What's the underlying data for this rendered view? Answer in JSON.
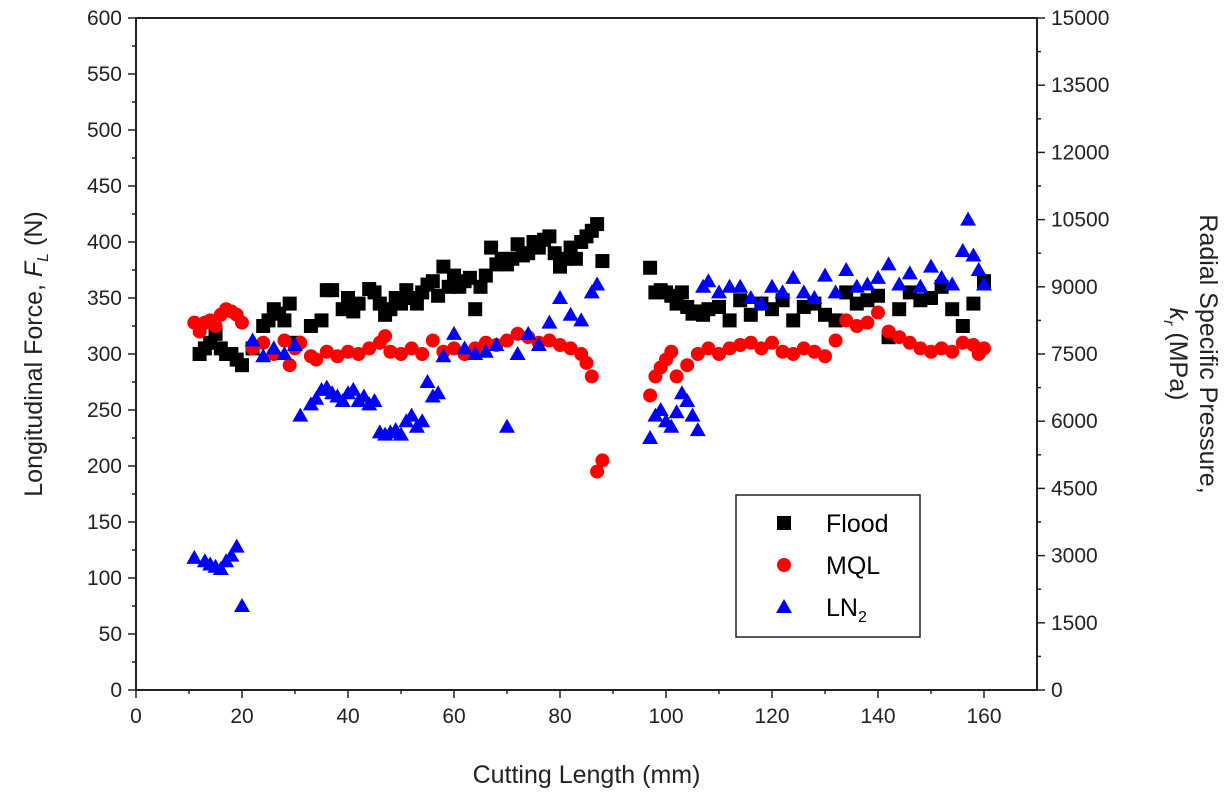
{
  "chart_data": {
    "type": "scatter",
    "title": "",
    "xlabel": "Cutting Length (mm)",
    "ylabel_left": {
      "text": "Longitudinal Force, ",
      "symbol": "F",
      "subscript": "L",
      "unit": " (N)"
    },
    "ylabel_right": {
      "line1": "Radial Specific Pressure,",
      "symbol": "k",
      "subscript": "r",
      "unit": " (MPa)"
    },
    "xlim": [
      0,
      170
    ],
    "ylim_left": [
      0,
      600
    ],
    "ylim_right": [
      0,
      15000
    ],
    "x_ticks": [
      0,
      20,
      40,
      60,
      80,
      100,
      120,
      140,
      160
    ],
    "y_ticks_left": [
      0,
      50,
      100,
      150,
      200,
      250,
      300,
      350,
      400,
      450,
      500,
      550,
      600
    ],
    "y_ticks_right": [
      0,
      1500,
      3000,
      4500,
      6000,
      7500,
      9000,
      10500,
      12000,
      13500,
      15000
    ],
    "grid": false,
    "legend_position": "bottom-right",
    "series": [
      {
        "name": "Flood",
        "marker": "square",
        "color": "#000000",
        "points": [
          [
            12,
            300
          ],
          [
            13,
            305
          ],
          [
            14,
            310
          ],
          [
            15,
            318
          ],
          [
            16,
            305
          ],
          [
            17,
            300
          ],
          [
            18,
            300
          ],
          [
            19,
            295
          ],
          [
            20,
            290
          ],
          [
            22,
            305
          ],
          [
            24,
            325
          ],
          [
            25,
            330
          ],
          [
            26,
            340
          ],
          [
            27,
            336
          ],
          [
            28,
            330
          ],
          [
            29,
            345
          ],
          [
            30,
            310
          ],
          [
            33,
            325
          ],
          [
            35,
            330
          ],
          [
            36,
            357
          ],
          [
            37,
            357
          ],
          [
            39,
            340
          ],
          [
            40,
            350
          ],
          [
            41,
            338
          ],
          [
            42,
            345
          ],
          [
            44,
            358
          ],
          [
            45,
            355
          ],
          [
            46,
            345
          ],
          [
            47,
            335
          ],
          [
            48,
            340
          ],
          [
            49,
            350
          ],
          [
            50,
            345
          ],
          [
            51,
            357
          ],
          [
            52,
            350
          ],
          [
            53,
            345
          ],
          [
            54,
            355
          ],
          [
            55,
            362
          ],
          [
            56,
            365
          ],
          [
            57,
            352
          ],
          [
            58,
            378
          ],
          [
            59,
            360
          ],
          [
            60,
            370
          ],
          [
            61,
            360
          ],
          [
            62,
            365
          ],
          [
            63,
            368
          ],
          [
            64,
            340
          ],
          [
            65,
            360
          ],
          [
            66,
            370
          ],
          [
            67,
            395
          ],
          [
            68,
            380
          ],
          [
            69,
            385
          ],
          [
            70,
            380
          ],
          [
            71,
            385
          ],
          [
            72,
            398
          ],
          [
            73,
            388
          ],
          [
            74,
            390
          ],
          [
            75,
            400
          ],
          [
            76,
            395
          ],
          [
            77,
            402
          ],
          [
            78,
            405
          ],
          [
            79,
            390
          ],
          [
            80,
            378
          ],
          [
            81,
            385
          ],
          [
            82,
            395
          ],
          [
            83,
            385
          ],
          [
            84,
            400
          ],
          [
            85,
            405
          ],
          [
            86,
            410
          ],
          [
            87,
            416
          ],
          [
            88,
            383
          ],
          [
            97,
            377
          ],
          [
            98,
            355
          ],
          [
            99,
            357
          ],
          [
            100,
            355
          ],
          [
            101,
            352
          ],
          [
            102,
            345
          ],
          [
            103,
            355
          ],
          [
            104,
            342
          ],
          [
            105,
            336
          ],
          [
            106,
            338
          ],
          [
            107,
            335
          ],
          [
            108,
            340
          ],
          [
            110,
            342
          ],
          [
            112,
            330
          ],
          [
            114,
            348
          ],
          [
            116,
            335
          ],
          [
            118,
            345
          ],
          [
            120,
            340
          ],
          [
            122,
            348
          ],
          [
            124,
            330
          ],
          [
            126,
            342
          ],
          [
            128,
            345
          ],
          [
            130,
            335
          ],
          [
            132,
            330
          ],
          [
            134,
            355
          ],
          [
            136,
            345
          ],
          [
            138,
            348
          ],
          [
            140,
            352
          ],
          [
            142,
            315
          ],
          [
            144,
            340
          ],
          [
            146,
            355
          ],
          [
            148,
            348
          ],
          [
            150,
            350
          ],
          [
            152,
            360
          ],
          [
            154,
            340
          ],
          [
            156,
            325
          ],
          [
            158,
            345
          ],
          [
            160,
            365
          ]
        ]
      },
      {
        "name": "MQL",
        "marker": "circle",
        "color": "#ff0000",
        "points": [
          [
            11,
            328
          ],
          [
            12,
            320
          ],
          [
            13,
            328
          ],
          [
            14,
            330
          ],
          [
            15,
            325
          ],
          [
            16,
            335
          ],
          [
            17,
            340
          ],
          [
            18,
            338
          ],
          [
            19,
            335
          ],
          [
            20,
            328
          ],
          [
            22,
            305
          ],
          [
            24,
            310
          ],
          [
            26,
            300
          ],
          [
            28,
            312
          ],
          [
            29,
            290
          ],
          [
            30,
            305
          ],
          [
            31,
            310
          ],
          [
            33,
            298
          ],
          [
            34,
            295
          ],
          [
            36,
            302
          ],
          [
            38,
            298
          ],
          [
            40,
            302
          ],
          [
            42,
            300
          ],
          [
            44,
            305
          ],
          [
            46,
            310
          ],
          [
            47,
            316
          ],
          [
            48,
            302
          ],
          [
            50,
            300
          ],
          [
            52,
            305
          ],
          [
            54,
            300
          ],
          [
            56,
            312
          ],
          [
            58,
            302
          ],
          [
            60,
            305
          ],
          [
            62,
            300
          ],
          [
            64,
            305
          ],
          [
            66,
            310
          ],
          [
            68,
            308
          ],
          [
            70,
            312
          ],
          [
            72,
            318
          ],
          [
            74,
            315
          ],
          [
            76,
            310
          ],
          [
            78,
            312
          ],
          [
            80,
            308
          ],
          [
            82,
            305
          ],
          [
            84,
            300
          ],
          [
            85,
            292
          ],
          [
            86,
            280
          ],
          [
            87,
            195
          ],
          [
            88,
            205
          ],
          [
            97,
            263
          ],
          [
            98,
            280
          ],
          [
            99,
            288
          ],
          [
            100,
            295
          ],
          [
            101,
            302
          ],
          [
            102,
            280
          ],
          [
            104,
            290
          ],
          [
            106,
            300
          ],
          [
            108,
            305
          ],
          [
            110,
            300
          ],
          [
            112,
            305
          ],
          [
            114,
            308
          ],
          [
            116,
            310
          ],
          [
            118,
            305
          ],
          [
            120,
            310
          ],
          [
            122,
            302
          ],
          [
            124,
            300
          ],
          [
            126,
            305
          ],
          [
            128,
            302
          ],
          [
            130,
            298
          ],
          [
            132,
            312
          ],
          [
            134,
            330
          ],
          [
            136,
            325
          ],
          [
            138,
            328
          ],
          [
            140,
            337
          ],
          [
            142,
            320
          ],
          [
            144,
            315
          ],
          [
            146,
            310
          ],
          [
            148,
            305
          ],
          [
            150,
            302
          ],
          [
            152,
            305
          ],
          [
            154,
            302
          ],
          [
            156,
            310
          ],
          [
            158,
            308
          ],
          [
            159,
            300
          ],
          [
            160,
            305
          ]
        ]
      },
      {
        "name": "LN2",
        "legend_base": "LN",
        "legend_sub": "2",
        "marker": "triangle",
        "color": "#0000ff",
        "points": [
          [
            11,
            118
          ],
          [
            13,
            115
          ],
          [
            14,
            112
          ],
          [
            15,
            110
          ],
          [
            16,
            108
          ],
          [
            17,
            115
          ],
          [
            18,
            120
          ],
          [
            19,
            128
          ],
          [
            20,
            75
          ],
          [
            22,
            312
          ],
          [
            24,
            298
          ],
          [
            26,
            305
          ],
          [
            28,
            300
          ],
          [
            30,
            308
          ],
          [
            31,
            245
          ],
          [
            33,
            255
          ],
          [
            34,
            260
          ],
          [
            35,
            268
          ],
          [
            36,
            270
          ],
          [
            37,
            265
          ],
          [
            38,
            262
          ],
          [
            39,
            258
          ],
          [
            40,
            265
          ],
          [
            41,
            268
          ],
          [
            42,
            258
          ],
          [
            43,
            262
          ],
          [
            44,
            255
          ],
          [
            45,
            258
          ],
          [
            46,
            230
          ],
          [
            47,
            228
          ],
          [
            48,
            230
          ],
          [
            49,
            232
          ],
          [
            50,
            228
          ],
          [
            51,
            240
          ],
          [
            52,
            245
          ],
          [
            53,
            235
          ],
          [
            54,
            240
          ],
          [
            55,
            275
          ],
          [
            56,
            262
          ],
          [
            57,
            265
          ],
          [
            58,
            298
          ],
          [
            60,
            318
          ],
          [
            62,
            305
          ],
          [
            64,
            300
          ],
          [
            66,
            302
          ],
          [
            68,
            308
          ],
          [
            70,
            235
          ],
          [
            72,
            300
          ],
          [
            74,
            318
          ],
          [
            76,
            308
          ],
          [
            78,
            328
          ],
          [
            80,
            350
          ],
          [
            82,
            335
          ],
          [
            84,
            330
          ],
          [
            86,
            355
          ],
          [
            87,
            362
          ],
          [
            97,
            225
          ],
          [
            98,
            245
          ],
          [
            99,
            250
          ],
          [
            100,
            240
          ],
          [
            101,
            235
          ],
          [
            102,
            248
          ],
          [
            103,
            265
          ],
          [
            104,
            258
          ],
          [
            105,
            245
          ],
          [
            106,
            232
          ],
          [
            107,
            360
          ],
          [
            108,
            365
          ],
          [
            110,
            355
          ],
          [
            112,
            360
          ],
          [
            114,
            360
          ],
          [
            116,
            350
          ],
          [
            118,
            345
          ],
          [
            120,
            360
          ],
          [
            122,
            355
          ],
          [
            124,
            368
          ],
          [
            126,
            355
          ],
          [
            128,
            350
          ],
          [
            130,
            370
          ],
          [
            132,
            355
          ],
          [
            134,
            375
          ],
          [
            136,
            360
          ],
          [
            138,
            362
          ],
          [
            140,
            368
          ],
          [
            142,
            380
          ],
          [
            144,
            362
          ],
          [
            146,
            372
          ],
          [
            148,
            360
          ],
          [
            150,
            378
          ],
          [
            152,
            368
          ],
          [
            154,
            362
          ],
          [
            156,
            392
          ],
          [
            157,
            420
          ],
          [
            158,
            388
          ],
          [
            159,
            375
          ],
          [
            160,
            362
          ]
        ]
      }
    ]
  }
}
